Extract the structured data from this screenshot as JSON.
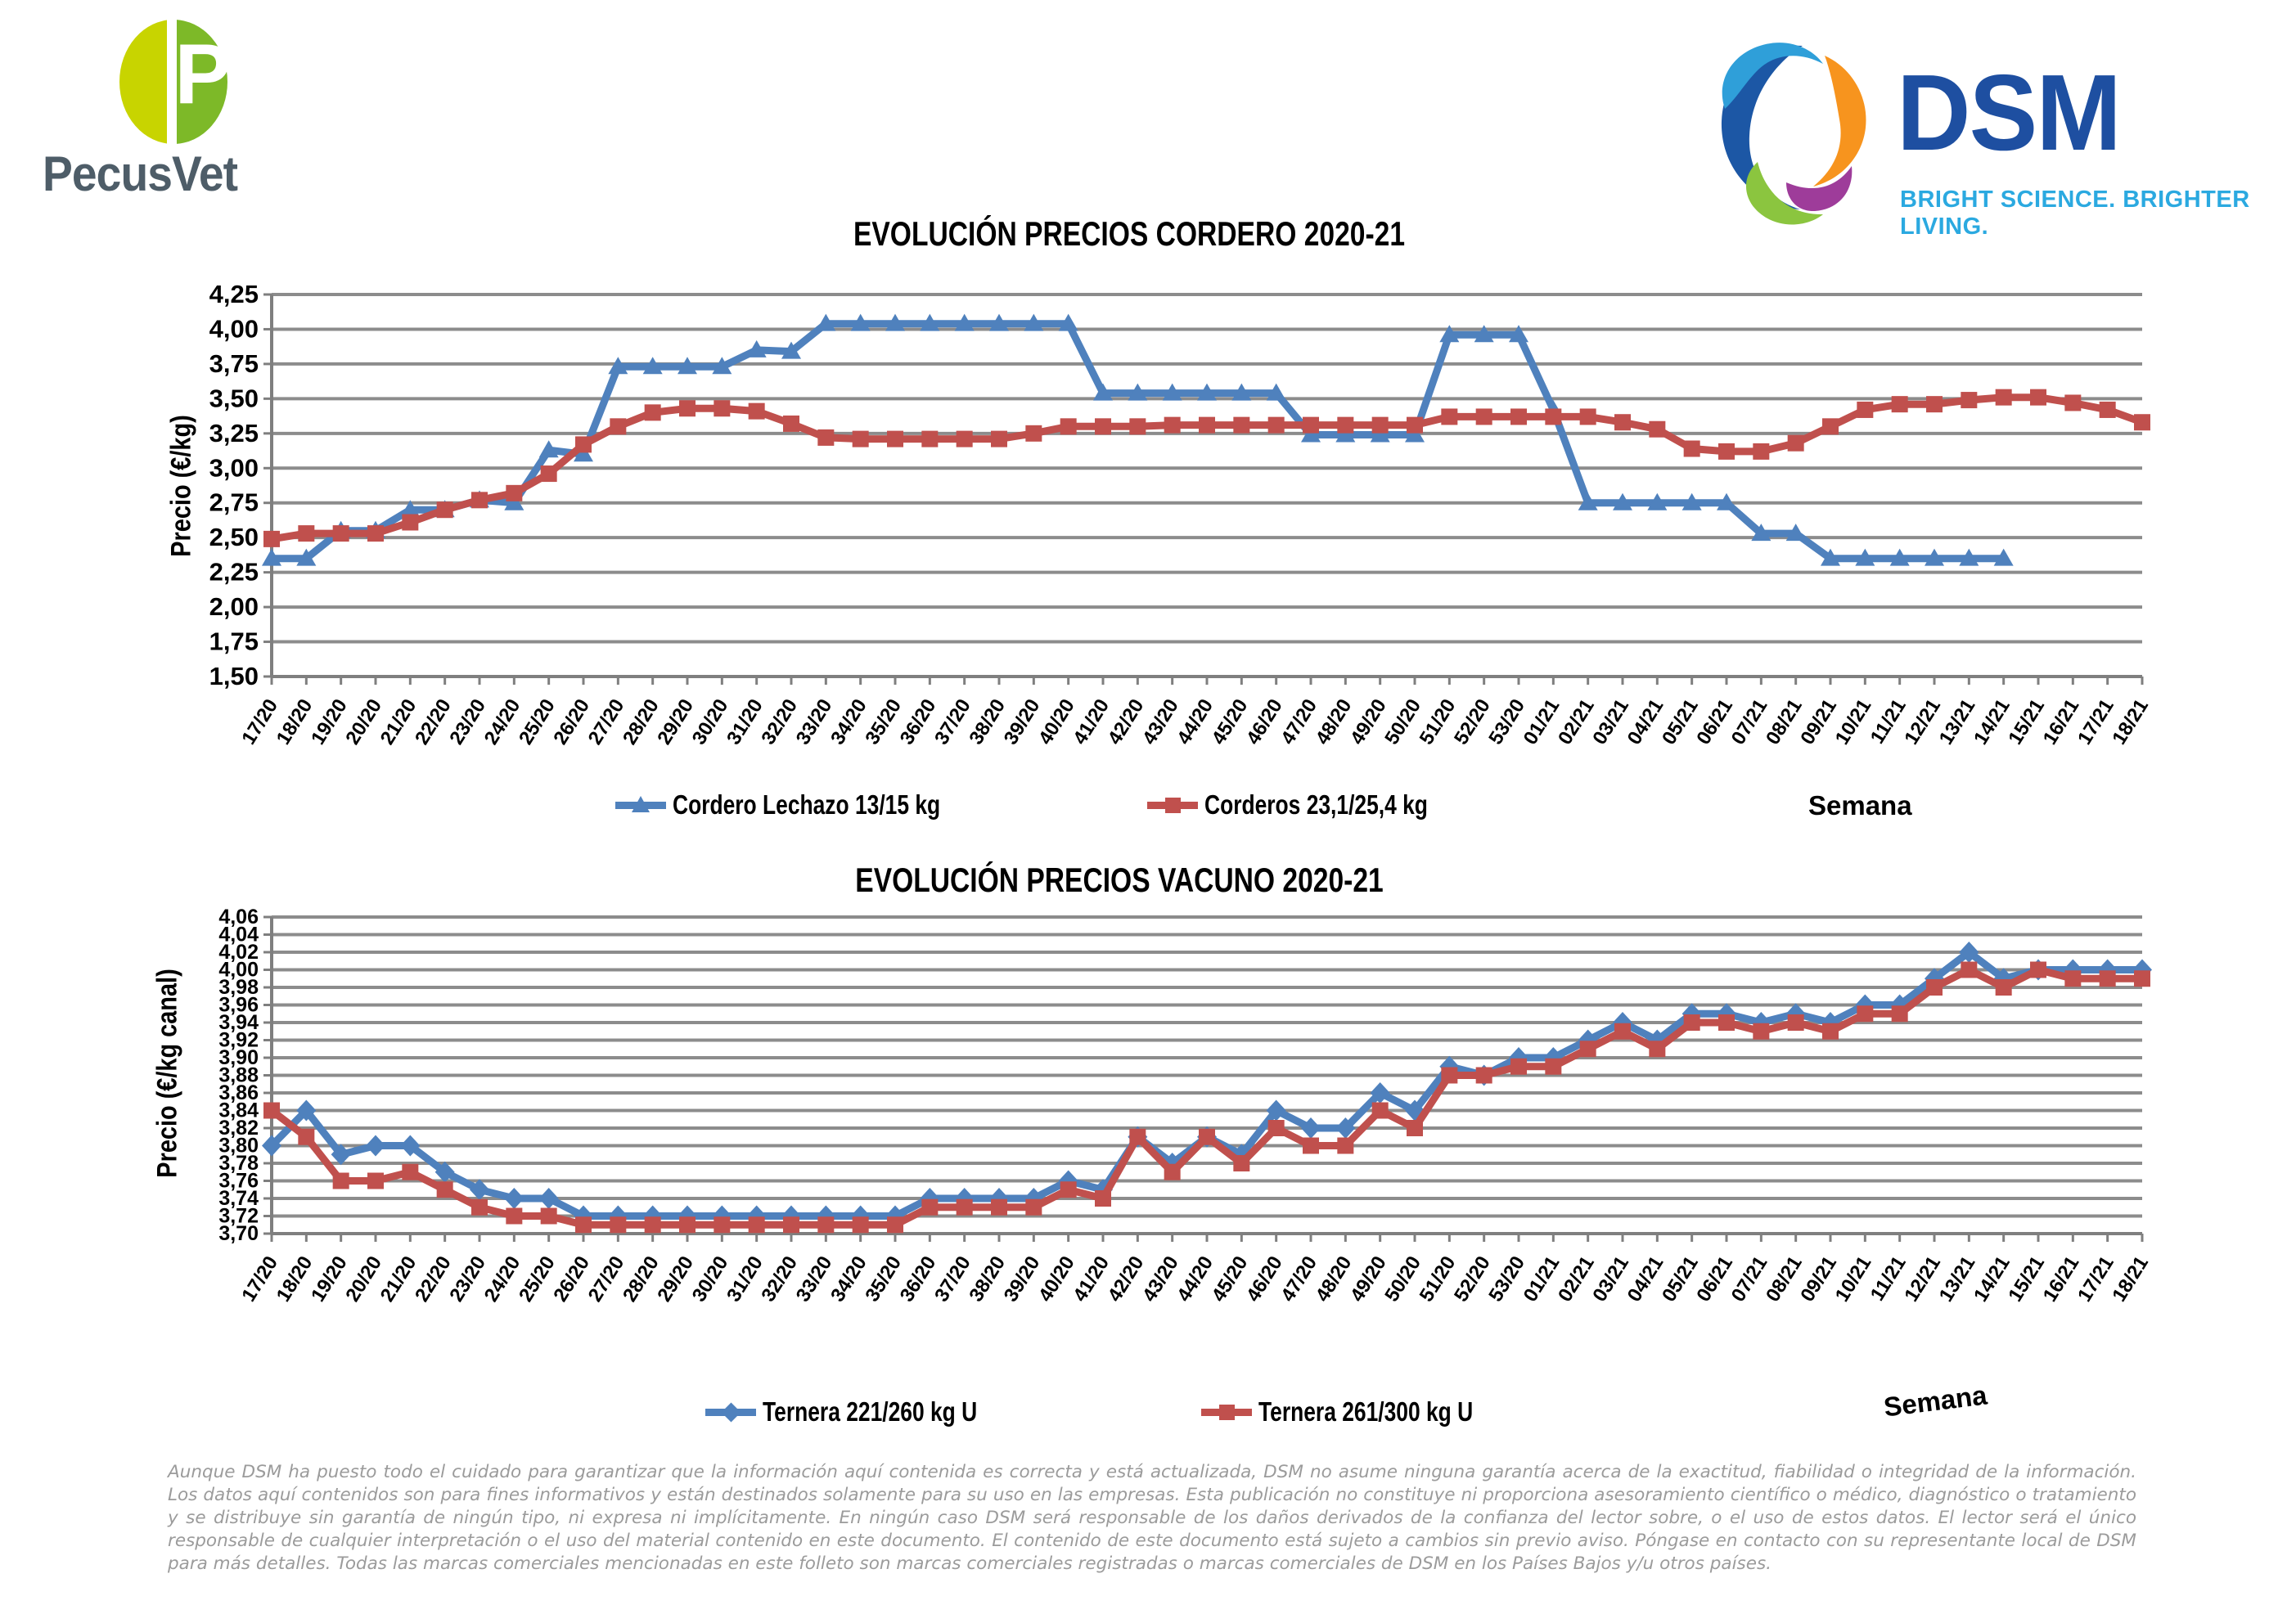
{
  "header": {
    "pecusvet": {
      "name": "PecusVet",
      "letter": "P"
    },
    "dsm": {
      "name": "DSM",
      "tagline": "BRIGHT SCIENCE. BRIGHTER LIVING."
    }
  },
  "colors": {
    "series_blue": "#4F81BD",
    "series_red": "#C0504D",
    "grid": "#8C8C8C",
    "axis": "#7F7F7F",
    "title": "#000000",
    "footer_text": "#9B9B9B",
    "pecusvet_text": "#4E5D68",
    "pecusvet_leaf_left": "#C8D400",
    "pecusvet_leaf_right": "#7DB928",
    "dsm_blue": "#1E4FA1",
    "dsm_tagline": "#2BA9E0",
    "dsm_swirl": [
      "#2F9FD9",
      "#1C57A5",
      "#F7941E",
      "#8BC53F",
      "#93278F",
      "#29ABE2"
    ]
  },
  "chart_data": [
    {
      "type": "line",
      "title": "EVOLUCIÓN PRECIOS CORDERO 2020-21",
      "ylabel": "Precio (€/kg)",
      "xlabel": "Semana",
      "ylim": [
        1.5,
        4.25
      ],
      "ytick_step": 0.25,
      "grid": true,
      "legend_position": "bottom",
      "categories": [
        "17/20",
        "18/20",
        "19/20",
        "20/20",
        "21/20",
        "22/20",
        "23/20",
        "24/20",
        "25/20",
        "26/20",
        "27/20",
        "28/20",
        "29/20",
        "30/20",
        "31/20",
        "32/20",
        "33/20",
        "34/20",
        "35/20",
        "36/20",
        "37/20",
        "38/20",
        "39/20",
        "40/20",
        "41/20",
        "42/20",
        "43/20",
        "44/20",
        "45/20",
        "46/20",
        "47/20",
        "48/20",
        "49/20",
        "50/20",
        "51/20",
        "52/20",
        "53/20",
        "01/21",
        "02/21",
        "03/21",
        "04/21",
        "05/21",
        "06/21",
        "07/21",
        "08/21",
        "09/21",
        "10/21",
        "11/21",
        "12/21",
        "13/21",
        "14/21",
        "15/21",
        "16/21",
        "17/21",
        "18/21"
      ],
      "series": [
        {
          "name": "Cordero Lechazo 13/15 kg",
          "marker": "triangle",
          "color_key": "series_blue",
          "values": [
            2.35,
            2.35,
            2.55,
            2.55,
            2.7,
            2.7,
            2.77,
            2.75,
            3.13,
            3.1,
            3.73,
            3.73,
            3.73,
            3.73,
            3.85,
            3.84,
            4.04,
            4.04,
            4.04,
            4.04,
            4.04,
            4.04,
            4.04,
            4.04,
            3.54,
            3.54,
            3.54,
            3.54,
            3.54,
            3.54,
            3.24,
            3.24,
            3.24,
            3.24,
            3.96,
            3.96,
            3.96,
            3.42,
            2.75,
            2.75,
            2.75,
            2.75,
            2.75,
            2.53,
            2.53,
            2.35,
            2.35,
            2.35,
            2.35,
            2.35,
            2.35,
            null,
            null,
            null,
            null
          ]
        },
        {
          "name": "Corderos 23,1/25,4 kg",
          "marker": "square",
          "color_key": "series_red",
          "values": [
            2.49,
            2.53,
            2.53,
            2.53,
            2.61,
            2.7,
            2.77,
            2.82,
            2.96,
            3.17,
            3.3,
            3.4,
            3.43,
            3.43,
            3.41,
            3.32,
            3.22,
            3.21,
            3.21,
            3.21,
            3.21,
            3.21,
            3.25,
            3.3,
            3.3,
            3.3,
            3.31,
            3.31,
            3.31,
            3.31,
            3.31,
            3.31,
            3.31,
            3.31,
            3.37,
            3.37,
            3.37,
            3.37,
            3.37,
            3.33,
            3.28,
            3.14,
            3.12,
            3.12,
            3.18,
            3.3,
            3.42,
            3.46,
            3.46,
            3.49,
            3.51,
            3.51,
            3.47,
            3.42,
            3.33
          ]
        }
      ]
    },
    {
      "type": "line",
      "title": "EVOLUCIÓN PRECIOS VACUNO 2020-21",
      "ylabel": "Precio (€/kg canal)",
      "xlabel": "Semana",
      "ylim": [
        3.7,
        4.06
      ],
      "ytick_step": 0.02,
      "grid": true,
      "legend_position": "bottom",
      "categories": [
        "17/20",
        "18/20",
        "19/20",
        "20/20",
        "21/20",
        "22/20",
        "23/20",
        "24/20",
        "25/20",
        "26/20",
        "27/20",
        "28/20",
        "29/20",
        "30/20",
        "31/20",
        "32/20",
        "33/20",
        "34/20",
        "35/20",
        "36/20",
        "37/20",
        "38/20",
        "39/20",
        "40/20",
        "41/20",
        "42/20",
        "43/20",
        "44/20",
        "45/20",
        "46/20",
        "47/20",
        "48/20",
        "49/20",
        "50/20",
        "51/20",
        "52/20",
        "53/20",
        "01/21",
        "02/21",
        "03/21",
        "04/21",
        "05/21",
        "06/21",
        "07/21",
        "08/21",
        "09/21",
        "10/21",
        "11/21",
        "12/21",
        "13/21",
        "14/21",
        "15/21",
        "16/21",
        "17/21",
        "18/21"
      ],
      "series": [
        {
          "name": "Ternera 221/260 kg U",
          "marker": "diamond",
          "color_key": "series_blue",
          "values": [
            3.8,
            3.84,
            3.79,
            3.8,
            3.8,
            3.77,
            3.75,
            3.74,
            3.74,
            3.72,
            3.72,
            3.72,
            3.72,
            3.72,
            3.72,
            3.72,
            3.72,
            3.72,
            3.72,
            3.74,
            3.74,
            3.74,
            3.74,
            3.76,
            3.75,
            3.81,
            3.78,
            3.81,
            3.79,
            3.84,
            3.82,
            3.82,
            3.86,
            3.84,
            3.89,
            3.88,
            3.9,
            3.9,
            3.92,
            3.94,
            3.92,
            3.95,
            3.95,
            3.94,
            3.95,
            3.94,
            3.96,
            3.96,
            3.99,
            4.02,
            3.99,
            4.0,
            4.0,
            4.0,
            4.0
          ]
        },
        {
          "name": "Ternera 261/300 kg U",
          "marker": "square",
          "color_key": "series_red",
          "values": [
            3.84,
            3.81,
            3.76,
            3.76,
            3.77,
            3.75,
            3.73,
            3.72,
            3.72,
            3.71,
            3.71,
            3.71,
            3.71,
            3.71,
            3.71,
            3.71,
            3.71,
            3.71,
            3.71,
            3.73,
            3.73,
            3.73,
            3.73,
            3.75,
            3.74,
            3.81,
            3.77,
            3.81,
            3.78,
            3.82,
            3.8,
            3.8,
            3.84,
            3.82,
            3.88,
            3.88,
            3.89,
            3.89,
            3.91,
            3.93,
            3.91,
            3.94,
            3.94,
            3.93,
            3.94,
            3.93,
            3.95,
            3.95,
            3.98,
            4.0,
            3.98,
            4.0,
            3.99,
            3.99,
            3.99
          ]
        }
      ]
    }
  ],
  "footer": {
    "disclaimer": "Aunque DSM ha puesto todo el cuidado para garantizar que la información aquí contenida es correcta y está actualizada, DSM no asume ninguna garantía acerca de la exactitud, fiabilidad o integridad de la información. Los datos aquí contenidos son para fines informativos y están destinados solamente para su uso en las empresas. Esta publicación no constituye ni proporciona asesoramiento científico o médico, diagnóstico o tratamiento y se distribuye sin garantía de ningún tipo, ni expresa ni implícitamente. En ningún caso DSM será responsable de los daños derivados de la confianza del lector sobre, o el uso de estos datos. El lector será el único responsable de cualquier interpretación o el uso del material contenido en este documento. El contenido de este documento está sujeto a cambios sin previo aviso. Póngase en contacto con su representante local de DSM para más detalles. Todas las marcas comerciales mencionadas en este folleto son marcas comerciales registradas o marcas comerciales de DSM en los Países Bajos y/u otros países."
  }
}
